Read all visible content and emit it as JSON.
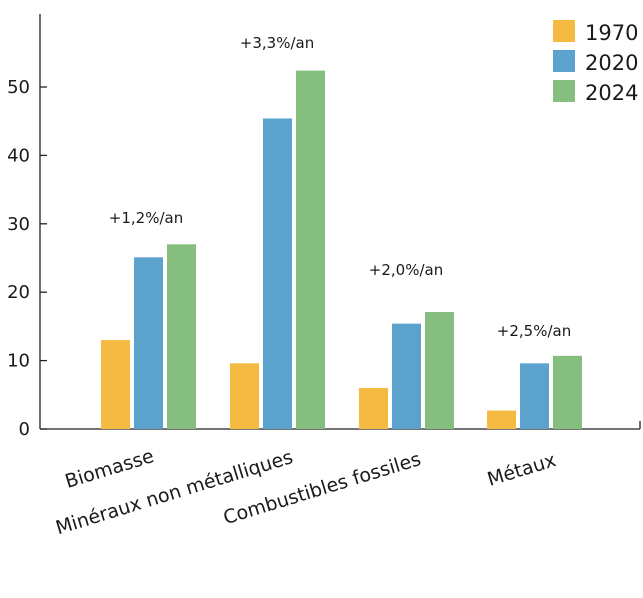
{
  "chart_data": {
    "type": "bar",
    "categories": [
      "Biomasse",
      "Minéraux non métalliques",
      "Combustibles fossiles",
      "Métaux"
    ],
    "series": [
      {
        "name": "1970",
        "values": [
          13,
          9.6,
          6,
          2.7
        ],
        "color": "#F5BA41"
      },
      {
        "name": "2020",
        "values": [
          25.1,
          45.4,
          15.4,
          9.6
        ],
        "color": "#5BA3CC"
      },
      {
        "name": "2024",
        "values": [
          27,
          52.4,
          17.1,
          10.7
        ],
        "color": "#86BE7F"
      }
    ],
    "annotations": [
      "+1,2%/an",
      "+3,3%/an",
      "+2,0%/an",
      "+2,5%/an"
    ],
    "yticks": [
      0,
      10,
      20,
      30,
      40,
      50
    ],
    "ylim": [
      0,
      60
    ],
    "xlabel": "",
    "ylabel": "",
    "title": "",
    "legend": "top-right",
    "grid": false
  }
}
